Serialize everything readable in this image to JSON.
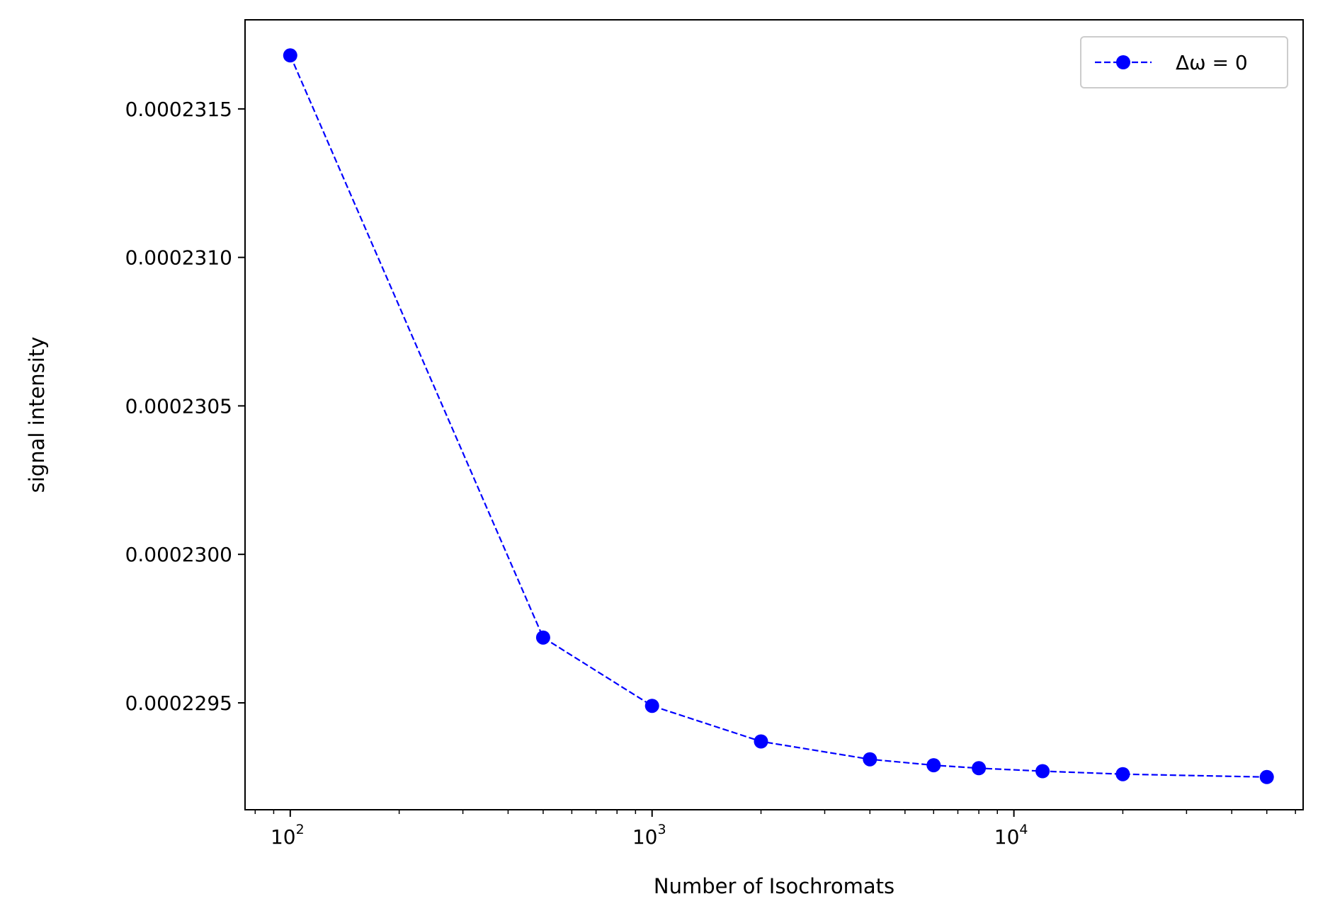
{
  "chart_data": {
    "type": "line",
    "xlabel": "Number of Isochromats",
    "ylabel": "signal intensity",
    "xscale": "log",
    "xlim": [
      75,
      63000
    ],
    "ylim": [
      0.00022914,
      0.0002318
    ],
    "grid": false,
    "legend_position": "top-right",
    "x_major_ticks": [
      {
        "value": 100,
        "base": "10",
        "exponent": "2"
      },
      {
        "value": 1000,
        "base": "10",
        "exponent": "3"
      },
      {
        "value": 10000,
        "base": "10",
        "exponent": "4"
      }
    ],
    "y_ticks": [
      {
        "value": 0.0002295,
        "label": "0.0002295"
      },
      {
        "value": 0.00023,
        "label": "0.0002300"
      },
      {
        "value": 0.0002305,
        "label": "0.0002305"
      },
      {
        "value": 0.000231,
        "label": "0.0002310"
      },
      {
        "value": 0.0002315,
        "label": "0.0002315"
      }
    ],
    "series": [
      {
        "name": "Δω = 0",
        "color": "#0000ff",
        "line_style": "dashed",
        "marker": "circle",
        "x": [
          100,
          500,
          1000,
          2000,
          4000,
          6000,
          8000,
          12000,
          20000,
          50000
        ],
        "y": [
          0.00023168,
          0.00022972,
          0.00022949,
          0.00022937,
          0.00022931,
          0.00022929,
          0.00022928,
          0.00022927,
          0.00022926,
          0.00022925
        ]
      }
    ]
  }
}
